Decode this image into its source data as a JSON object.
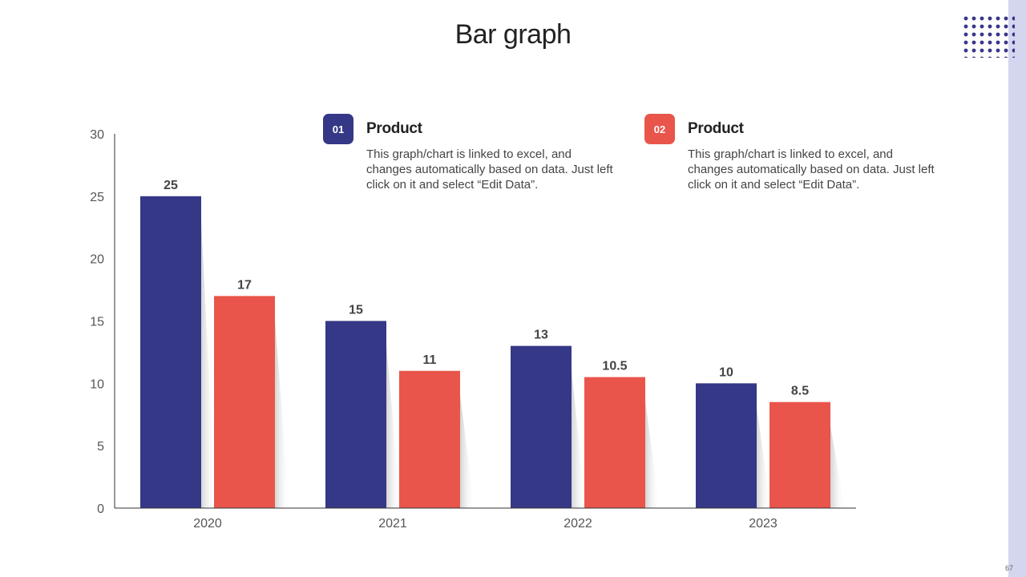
{
  "slide": {
    "title": "Bar graph",
    "page_number": "67"
  },
  "legend": [
    {
      "badge": "01",
      "title": "Product",
      "description": "This graph/chart is linked to excel, and changes automatically based on data. Just left click on it and select “Edit Data”.",
      "color": "#353886"
    },
    {
      "badge": "02",
      "title": "Product",
      "description": "This graph/chart is linked to excel, and changes automatically based on data. Just left click on it and select “Edit Data”.",
      "color": "#e9554a"
    }
  ],
  "chart_data": {
    "type": "bar",
    "title": "",
    "xlabel": "",
    "ylabel": "",
    "categories": [
      "2020",
      "2021",
      "2022",
      "2023"
    ],
    "series": [
      {
        "name": "Product 01",
        "values": [
          25,
          15,
          13,
          10
        ],
        "labels": [
          "25",
          "15",
          "13",
          "10"
        ],
        "color": "#353886"
      },
      {
        "name": "Product 02",
        "values": [
          17,
          11,
          10.5,
          8.5
        ],
        "labels": [
          "17",
          "11",
          "10.5",
          "8.5"
        ],
        "color": "#e9554a"
      }
    ],
    "ylim": [
      0,
      30
    ],
    "yticks": [
      0,
      5,
      10,
      15,
      20,
      25,
      30
    ],
    "grid": false
  }
}
